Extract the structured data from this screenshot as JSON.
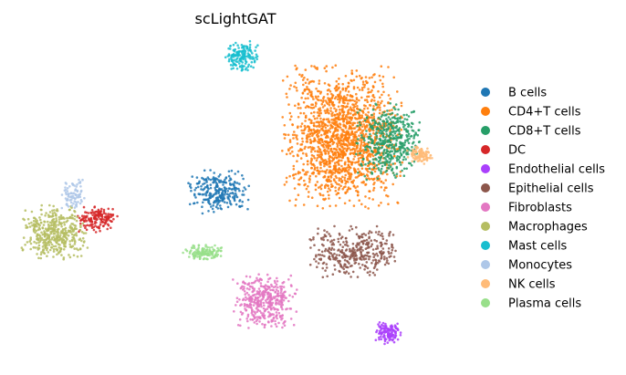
{
  "chart_data": {
    "type": "scatter",
    "title": "scLightGAT",
    "xlabel": "",
    "ylabel": "",
    "grid": false,
    "legend_position": "right",
    "series": [
      {
        "name": "B cells",
        "color": "#1f77b4",
        "clusters": [
          [
            0.24,
            0.21,
            0.028,
            0.02,
            260
          ]
        ]
      },
      {
        "name": "CD4+T cells",
        "color": "#ff7f0e",
        "clusters": [
          [
            0.375,
            0.15,
            0.055,
            0.065,
            1600
          ]
        ]
      },
      {
        "name": "CD8+T cells",
        "color": "#279e68",
        "clusters": [
          [
            0.425,
            0.155,
            0.03,
            0.035,
            450
          ]
        ]
      },
      {
        "name": "DC",
        "color": "#d62728",
        "clusters": [
          [
            0.107,
            0.24,
            0.018,
            0.012,
            160
          ]
        ]
      },
      {
        "name": "Endothelial cells",
        "color": "#aa40fc",
        "clusters": [
          [
            0.425,
            0.365,
            0.012,
            0.01,
            120
          ]
        ]
      },
      {
        "name": "Epithelial cells",
        "color": "#8c564b",
        "clusters": [
          [
            0.39,
            0.275,
            0.045,
            0.025,
            350
          ]
        ]
      },
      {
        "name": "Fibroblasts",
        "color": "#e377c2",
        "clusters": [
          [
            0.29,
            0.33,
            0.03,
            0.025,
            400
          ]
        ]
      },
      {
        "name": "Macrophages",
        "color": "#b5bd61",
        "clusters": [
          [
            0.06,
            0.255,
            0.03,
            0.025,
            420
          ]
        ]
      },
      {
        "name": "Mast cells",
        "color": "#17becf",
        "clusters": [
          [
            0.265,
            0.062,
            0.015,
            0.014,
            160
          ]
        ]
      },
      {
        "name": "Monocytes",
        "color": "#aec7e8",
        "clusters": [
          [
            0.08,
            0.215,
            0.012,
            0.015,
            80
          ]
        ]
      },
      {
        "name": "NK cells",
        "color": "#ffbb78",
        "clusters": [
          [
            0.46,
            0.17,
            0.012,
            0.008,
            100
          ]
        ]
      },
      {
        "name": "Plasma cells",
        "color": "#98df8a",
        "clusters": [
          [
            0.222,
            0.276,
            0.018,
            0.007,
            130
          ]
        ]
      }
    ]
  }
}
